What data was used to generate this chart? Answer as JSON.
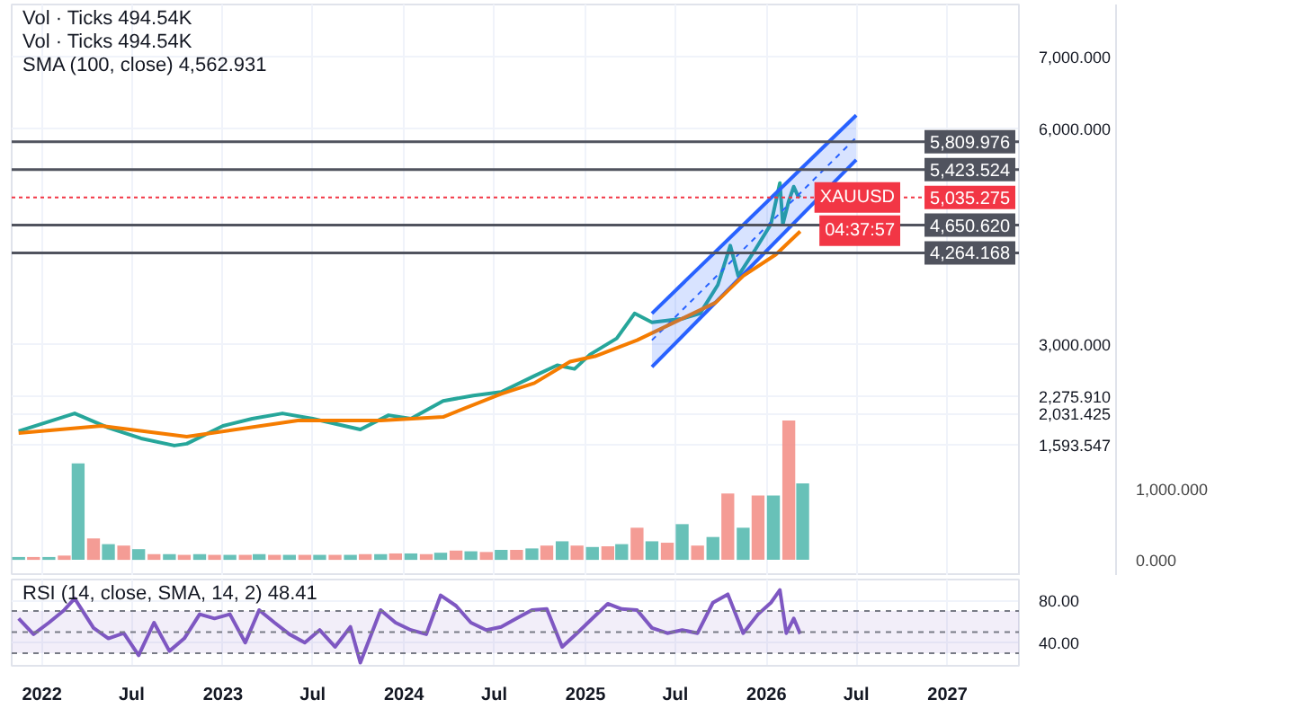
{
  "chart_data": [
    {
      "type": "line",
      "annotations": [
        "Vol · Ticks 494.54K",
        "Vol · Ticks 494.54K",
        "SMA (100, close) 4,562.931",
        "XAUUSD",
        "04:37:57"
      ],
      "xlim": [
        "2021-11-01",
        "2027-05-25"
      ],
      "xticks": [
        {
          "value": "2022-01-01",
          "label": null
        },
        {
          "value": "2022-07-01",
          "label": null
        },
        {
          "value": "2023-01-01",
          "label": null
        },
        {
          "value": "2023-07-01",
          "label": null
        },
        {
          "value": "2024-01-01",
          "label": null
        },
        {
          "value": "2024-07-01",
          "label": null
        },
        {
          "value": "2025-01-01",
          "label": null
        },
        {
          "value": "2025-07-01",
          "label": null
        },
        {
          "value": "2026-01-01",
          "label": null
        },
        {
          "value": "2026-07-01",
          "label": null
        },
        {
          "value": "2027-01-01",
          "label": null
        }
      ],
      "ylim": [
        -230,
        7720
      ],
      "yticks": [
        {
          "value": 1593.547,
          "label": "1,593.547"
        },
        {
          "value": 2031.425,
          "label": "2,031.425"
        },
        {
          "value": 2275.91,
          "label": "2,275.910"
        },
        {
          "value": 3000,
          "label": "3,000.000"
        },
        {
          "value": 6000,
          "label": "6,000.000"
        },
        {
          "value": 7000,
          "label": "7,000.000"
        }
      ],
      "y2lim": [
        -225,
        7775
      ],
      "y2ticks": [
        {
          "value": 0,
          "label": "0.000"
        },
        {
          "value": 1000,
          "label": "1,000.000"
        }
      ],
      "tick_labels": "y",
      "grid": true,
      "ref_lines": [
        {
          "axis": "y",
          "value": 5809.976,
          "label": "5,809.976",
          "color": "#50535e"
        },
        {
          "axis": "y",
          "value": 5423.524,
          "label": "5,423.524",
          "color": "#50535e"
        },
        {
          "axis": "y",
          "value": 4650.62,
          "label": "4,650.620",
          "color": "#50535e"
        },
        {
          "axis": "y",
          "value": 4264.168,
          "label": "4,264.168",
          "color": "#50535e"
        },
        {
          "axis": "y",
          "value": 5035.275,
          "label": "5,035.275",
          "color": "#f23645",
          "line_style": "dotted"
        }
      ],
      "series": [
        {
          "color": "#26a69a",
          "x": [
            "2021-11-15",
            "2022-03-08",
            "2022-05-15",
            "2022-07-20",
            "2022-09-25",
            "2022-10-20",
            "2023-01-01",
            "2023-03-01",
            "2023-05-01",
            "2023-07-01",
            "2023-10-05",
            "2023-12-01",
            "2024-01-15",
            "2024-03-20",
            "2024-05-20",
            "2024-07-15",
            "2024-09-20",
            "2024-11-05",
            "2024-12-10",
            "2025-01-10",
            "2025-03-05",
            "2025-04-10",
            "2025-05-15",
            "2025-07-15",
            "2025-08-20",
            "2025-09-25",
            "2025-10-20",
            "2025-11-05",
            "2025-12-10",
            "2026-01-10",
            "2026-01-28",
            "2026-02-03",
            "2026-02-15",
            "2026-02-25",
            "2026-03-05",
            "2026-03-10"
          ],
          "values": [
            1783,
            2031,
            1832,
            1683,
            1584,
            1609,
            1857,
            1957,
            2031,
            1957,
            1807,
            2006,
            1957,
            2205,
            2280,
            2329,
            2553,
            2702,
            2650,
            2850,
            3075,
            3422,
            3298,
            3348,
            3422,
            3820,
            4366,
            3944,
            4317,
            4665,
            5236,
            4665,
            4988,
            5186,
            5062,
            5035
          ]
        },
        {
          "color": "#2962ff",
          "line_style": "dashed",
          "x": [
            "2025-05-15",
            "2026-07-01"
          ],
          "values": [
            3050,
            5870
          ],
          "lower": [
            2677,
            5559
          ],
          "upper": [
            3422,
            6180
          ]
        },
        {
          "color": "#2962ff",
          "x": [
            "2025-05-15",
            "2026-07-01"
          ],
          "values": [
            3422,
            6180
          ]
        },
        {
          "color": "#2962ff",
          "x": [
            "2025-05-15",
            "2026-07-01"
          ],
          "values": [
            2677,
            5559
          ]
        },
        {
          "color": "#f57c00",
          "x": [
            "2021-11-15",
            "2022-05-01",
            "2022-10-20",
            "2023-06-01",
            "2023-11-15",
            "2024-03-20",
            "2024-07-15",
            "2024-09-20",
            "2024-12-01",
            "2025-01-20",
            "2025-04-15",
            "2025-09-20",
            "2025-11-15",
            "2026-01-20",
            "2026-03-10"
          ],
          "values": [
            1758,
            1857,
            1708,
            1932,
            1932,
            1982,
            2304,
            2453,
            2752,
            2826,
            3050,
            3571,
            3944,
            4242,
            4562.931
          ]
        },
        {
          "type": "bar",
          "axis": "y2",
          "x": [
            "2021-11-15",
            "2021-12-15",
            "2022-01-15",
            "2022-02-15",
            "2022-03-15",
            "2022-04-15",
            "2022-05-15",
            "2022-06-15",
            "2022-07-15",
            "2022-08-15",
            "2022-09-15",
            "2022-10-15",
            "2022-11-15",
            "2022-12-15",
            "2023-01-15",
            "2023-02-15",
            "2023-03-15",
            "2023-04-15",
            "2023-05-15",
            "2023-06-15",
            "2023-07-15",
            "2023-08-15",
            "2023-09-15",
            "2023-10-15",
            "2023-11-15",
            "2023-12-15",
            "2024-01-15",
            "2024-02-15",
            "2024-03-15",
            "2024-04-15",
            "2024-05-15",
            "2024-06-15",
            "2024-07-15",
            "2024-08-15",
            "2024-09-15",
            "2024-10-15",
            "2024-11-15",
            "2024-12-15",
            "2025-01-15",
            "2025-02-15",
            "2025-03-15",
            "2025-04-15",
            "2025-05-15",
            "2025-06-15",
            "2025-07-15",
            "2025-08-15",
            "2025-09-15",
            "2025-10-15",
            "2025-11-15",
            "2025-12-15",
            "2026-01-15",
            "2026-02-15",
            "2026-03-15"
          ],
          "values": [
            40,
            40,
            40,
            60,
            1350,
            300,
            220,
            200,
            150,
            80,
            80,
            70,
            80,
            70,
            70,
            70,
            80,
            70,
            70,
            70,
            70,
            70,
            70,
            80,
            80,
            90,
            90,
            80,
            100,
            130,
            120,
            110,
            140,
            140,
            160,
            200,
            260,
            200,
            180,
            190,
            220,
            450,
            260,
            240,
            500,
            200,
            320,
            930,
            450,
            900,
            900,
            1950,
            1070
          ],
          "colors": [
            "#4db6ac",
            "#f28b82",
            "#4db6ac",
            "#f28b82",
            "#4db6ac",
            "#f28b82",
            "#4db6ac",
            "#f28b82",
            "#4db6ac",
            "#f28b82",
            "#4db6ac",
            "#f28b82",
            "#4db6ac",
            "#f28b82",
            "#4db6ac",
            "#f28b82",
            "#4db6ac",
            "#f28b82",
            "#4db6ac",
            "#f28b82",
            "#4db6ac",
            "#f28b82",
            "#4db6ac",
            "#f28b82",
            "#4db6ac",
            "#f28b82",
            "#4db6ac",
            "#f28b82",
            "#4db6ac",
            "#f28b82",
            "#4db6ac",
            "#f28b82",
            "#4db6ac",
            "#f28b82",
            "#4db6ac",
            "#f28b82",
            "#4db6ac",
            "#f28b82",
            "#4db6ac",
            "#f28b82",
            "#4db6ac",
            "#f28b82",
            "#4db6ac",
            "#f28b82",
            "#4db6ac",
            "#f28b82",
            "#4db6ac",
            "#f28b82",
            "#4db6ac",
            "#f28b82",
            "#4db6ac",
            "#f28b82",
            "#4db6ac"
          ]
        }
      ]
    },
    {
      "type": "line",
      "annotations": [
        "RSI (14, close, SMA, 14, 2) 48.41"
      ],
      "xlim": [
        "2021-11-01",
        "2027-05-25"
      ],
      "xticks": [
        {
          "value": "2022-01-01",
          "label": "2022"
        },
        {
          "value": "2022-07-01",
          "label": "Jul"
        },
        {
          "value": "2023-01-01",
          "label": "2023"
        },
        {
          "value": "2023-07-01",
          "label": "Jul"
        },
        {
          "value": "2024-01-01",
          "label": "2024"
        },
        {
          "value": "2024-07-01",
          "label": "Jul"
        },
        {
          "value": "2025-01-01",
          "label": "2025"
        },
        {
          "value": "2025-07-01",
          "label": "Jul"
        },
        {
          "value": "2026-01-01",
          "label": "2026"
        },
        {
          "value": "2026-07-01",
          "label": "Jul"
        },
        {
          "value": "2027-01-01",
          "label": "2027"
        }
      ],
      "ylim": [
        18,
        100
      ],
      "yticks": [
        {
          "value": 40,
          "label": "40.00"
        },
        {
          "value": 80,
          "label": "80.00"
        }
      ],
      "grid": true,
      "bands": [
        {
          "axis": "y",
          "from": 30,
          "to": 70,
          "color": "#7e57c2"
        }
      ],
      "ref_lines": [
        {
          "axis": "y",
          "value": 70,
          "color": "#787b86",
          "line_style": "dashed"
        },
        {
          "axis": "y",
          "value": 50,
          "color": "#787b86",
          "line_style": "dashed"
        },
        {
          "axis": "y",
          "value": 30,
          "color": "#787b86",
          "line_style": "dashed"
        }
      ],
      "series": [
        {
          "color": "#7e57c2",
          "x": [
            "2021-11-15",
            "2021-12-15",
            "2022-01-15",
            "2022-02-15",
            "2022-03-08",
            "2022-04-15",
            "2022-05-15",
            "2022-06-15",
            "2022-07-15",
            "2022-08-15",
            "2022-09-15",
            "2022-10-15",
            "2022-11-15",
            "2022-12-15",
            "2023-01-15",
            "2023-02-15",
            "2023-03-15",
            "2023-04-15",
            "2023-05-15",
            "2023-06-15",
            "2023-07-15",
            "2023-08-15",
            "2023-09-15",
            "2023-10-05",
            "2023-11-15",
            "2023-12-15",
            "2024-01-15",
            "2024-02-15",
            "2024-03-15",
            "2024-04-15",
            "2024-05-15",
            "2024-06-15",
            "2024-07-15",
            "2024-08-15",
            "2024-09-15",
            "2024-10-15",
            "2024-11-15",
            "2024-12-15",
            "2025-01-15",
            "2025-02-15",
            "2025-03-15",
            "2025-04-15",
            "2025-05-15",
            "2025-06-15",
            "2025-07-15",
            "2025-08-15",
            "2025-09-15",
            "2025-10-15",
            "2025-11-15",
            "2025-12-15",
            "2026-01-10",
            "2026-01-28",
            "2026-02-10",
            "2026-02-25",
            "2026-03-10"
          ],
          "values": [
            63,
            48,
            59,
            71,
            82,
            54,
            44,
            49,
            28,
            59,
            32,
            44,
            67,
            63,
            67,
            40,
            71,
            59,
            48,
            40,
            52,
            36,
            55,
            21,
            71,
            59,
            52,
            48,
            85,
            75,
            59,
            52,
            55,
            63,
            71,
            72,
            36,
            49,
            63,
            77,
            72,
            71,
            54,
            49,
            52,
            49,
            78,
            86,
            49,
            67,
            78,
            90,
            49,
            63,
            48.41
          ]
        }
      ]
    }
  ]
}
